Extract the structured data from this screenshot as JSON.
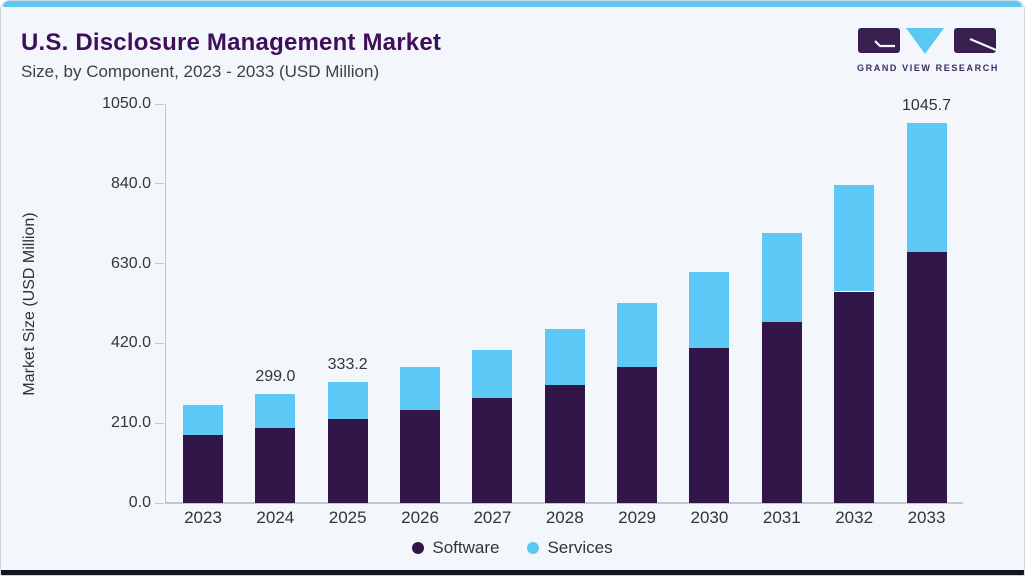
{
  "header": {
    "title": "U.S. Disclosure Management Market",
    "subtitle": "Size, by Component, 2023 - 2033 (USD Million)"
  },
  "logo": {
    "text": "GRAND VIEW RESEARCH"
  },
  "chart_data": {
    "type": "bar",
    "stacked": true,
    "title": "U.S. Disclosure Management Market Size, by Component, 2023 - 2033 (USD Million)",
    "categories": [
      "2023",
      "2024",
      "2025",
      "2026",
      "2027",
      "2028",
      "2029",
      "2030",
      "2031",
      "2032",
      "2033"
    ],
    "series": [
      {
        "name": "Software",
        "color": "#321549",
        "values": [
          186,
          207,
          230,
          256,
          288,
          325,
          373,
          427,
          497,
          582,
          690
        ]
      },
      {
        "name": "Services",
        "color": "#5cc8f5",
        "values": [
          85,
          92,
          103.2,
          119,
          132,
          154,
          177,
          208,
          247,
          292,
          355.7
        ]
      }
    ],
    "totals": [
      271,
      299.0,
      333.2,
      375,
      420,
      479,
      550,
      635,
      744,
      874,
      1045.7
    ],
    "bar_labels": {
      "2024": "299.0",
      "2025": "333.2",
      "2033": "1045.7"
    },
    "ylabel": "Market Size (USD Million)",
    "xlabel": "",
    "y_ticks": [
      0,
      210,
      420,
      630,
      840,
      1050
    ],
    "y_tick_format": "one_decimal",
    "ylim": [
      0,
      1050
    ],
    "grid": false,
    "legend_position": "bottom"
  },
  "colors": {
    "software": "#321549",
    "services": "#5cc8f5",
    "title": "#400f5c",
    "top_strip": "#5bc8f2",
    "bottom_strip": "#14141f",
    "background": "#f3f7fb",
    "axis": "#bfc8d2",
    "text": "#33343c",
    "logo_purple": "#38204e"
  }
}
